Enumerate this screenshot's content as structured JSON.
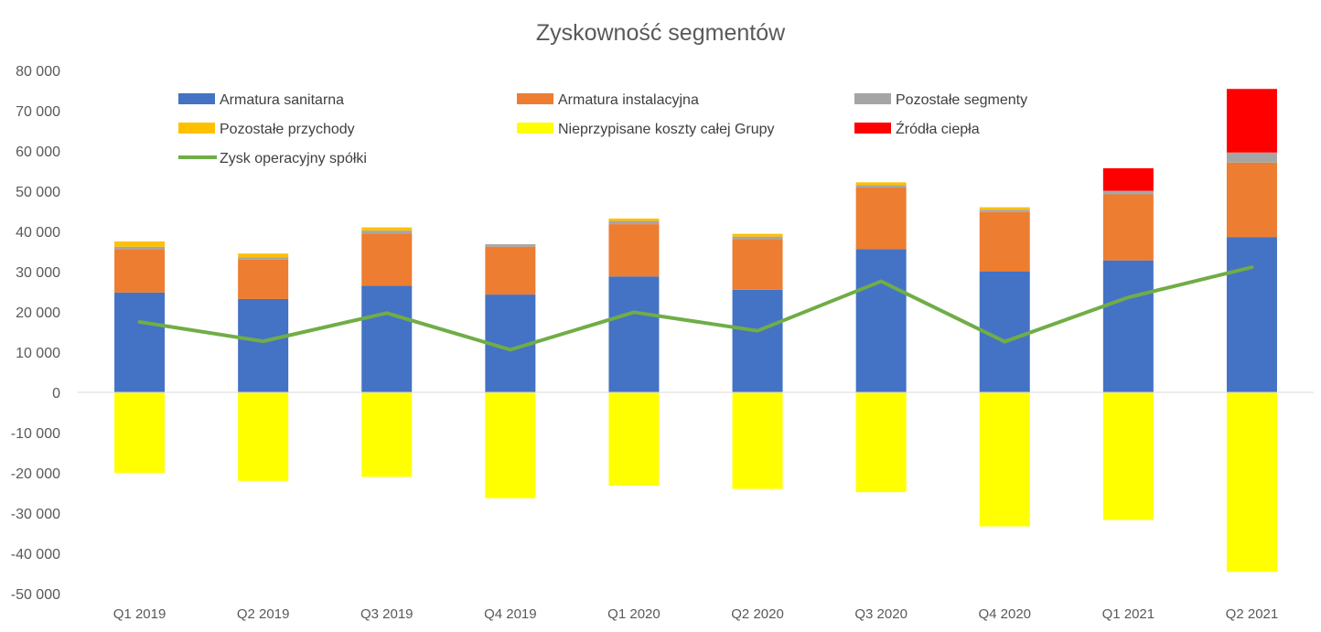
{
  "chart_data": {
    "type": "bar",
    "title": "Zyskowność segmentów",
    "categories": [
      "Q1 2019",
      "Q2 2019",
      "Q3 2019",
      "Q4 2019",
      "Q1 2020",
      "Q2 2020",
      "Q3 2020",
      "Q4 2020",
      "Q1 2021",
      "Q2 2021"
    ],
    "ylim": [
      -50000,
      80000
    ],
    "y_ticks": [
      80000,
      70000,
      60000,
      50000,
      40000,
      30000,
      20000,
      10000,
      0,
      -10000,
      -20000,
      -30000,
      -40000,
      -50000
    ],
    "y_tick_labels": [
      "80 000",
      "70 000",
      "60 000",
      "50 000",
      "40 000",
      "30 000",
      "20 000",
      "10 000",
      "0",
      "-10 000",
      "-20 000",
      "-30 000",
      "-40 000",
      "-50 000"
    ],
    "grid": false,
    "legend_position": "top",
    "series": [
      {
        "name": "Armatura sanitarna",
        "type": "bar",
        "color": "#4472C4",
        "values": [
          24800,
          23200,
          26500,
          24300,
          28800,
          25500,
          35600,
          30000,
          32800,
          38600
        ]
      },
      {
        "name": "Armatura instalacyjna",
        "type": "bar",
        "color": "#ED7D31",
        "values": [
          10800,
          9800,
          13000,
          11900,
          13000,
          12600,
          15300,
          14800,
          16400,
          18500
        ]
      },
      {
        "name": "Pozostałe segmenty",
        "type": "bar",
        "color": "#A5A5A5",
        "values": [
          600,
          600,
          700,
          600,
          800,
          600,
          600,
          600,
          900,
          2500
        ]
      },
      {
        "name": "Pozostałe przychody",
        "type": "bar",
        "color": "#FFC000",
        "values": [
          1300,
          900,
          800,
          0,
          600,
          700,
          700,
          600,
          0,
          0
        ]
      },
      {
        "name": "Nieprzypisane koszty całej Grupy",
        "type": "bar",
        "color": "#FFFF00",
        "values": [
          -20000,
          -22000,
          -21000,
          -26300,
          -23200,
          -24000,
          -24800,
          -33300,
          -31700,
          -44600
        ]
      },
      {
        "name": "Źródła ciepła",
        "type": "bar",
        "color": "#FF0000",
        "values": [
          0,
          0,
          0,
          0,
          0,
          0,
          0,
          0,
          5600,
          15800
        ]
      },
      {
        "name": "Zysk operacyjny spółki",
        "type": "line",
        "color": "#70AD47",
        "values": [
          17500,
          12700,
          19700,
          10600,
          19900,
          15300,
          27600,
          12600,
          23600,
          31100
        ]
      }
    ]
  }
}
